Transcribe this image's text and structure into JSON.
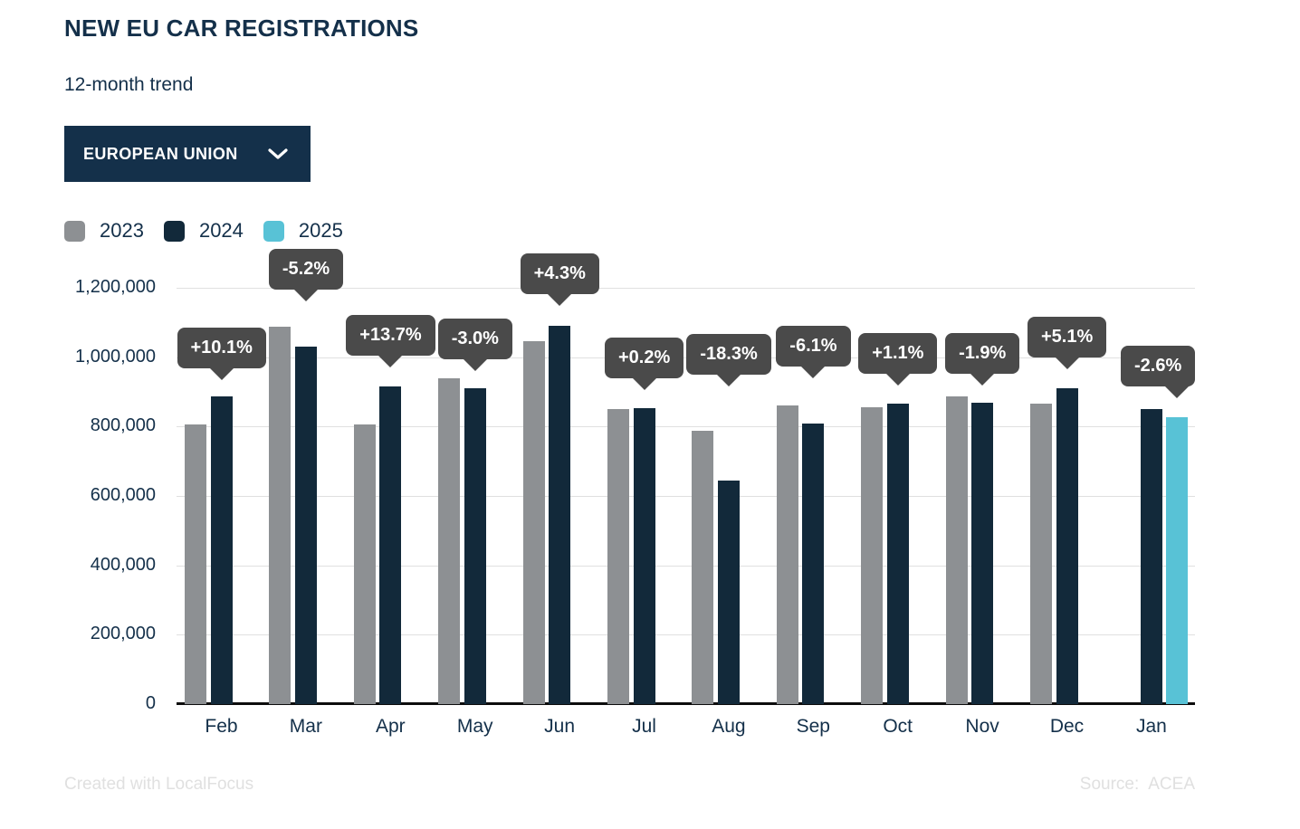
{
  "page": {
    "background": "#ffffff"
  },
  "header": {
    "title": "NEW EU CAR REGISTRATIONS",
    "subtitle": "12-month trend",
    "region_selector": {
      "label": "EUROPEAN UNION",
      "icon": "chevron-down-icon"
    }
  },
  "legend": {
    "items": [
      {
        "label": "2023",
        "color": "#8d9093"
      },
      {
        "label": "2024",
        "color": "#12293a"
      },
      {
        "label": "2025",
        "color": "#58c2d6"
      }
    ]
  },
  "chart_data": {
    "type": "bar",
    "title": "NEW EU CAR REGISTRATIONS",
    "subtitle": "12-month trend",
    "categories": [
      "Feb",
      "Mar",
      "Apr",
      "May",
      "Jun",
      "Jul",
      "Aug",
      "Sep",
      "Oct",
      "Nov",
      "Dec",
      "Jan"
    ],
    "series": [
      {
        "name": "2023",
        "color": "#8d9093",
        "values": [
          805000,
          1088000,
          805000,
          939000,
          1045000,
          851000,
          788000,
          861000,
          856000,
          887000,
          867000,
          null
        ]
      },
      {
        "name": "2024",
        "color": "#12293a",
        "values": [
          886000,
          1031000,
          915000,
          911000,
          1090000,
          852000,
          644000,
          808000,
          866000,
          870000,
          911000,
          850000
        ]
      },
      {
        "name": "2025",
        "color": "#58c2d6",
        "values": [
          null,
          null,
          null,
          null,
          null,
          null,
          null,
          null,
          null,
          null,
          null,
          828000
        ]
      }
    ],
    "change_labels": [
      "+10.1%",
      "-5.2%",
      "+13.7%",
      "-3.0%",
      "+4.3%",
      "+0.2%",
      "-18.3%",
      "-6.1%",
      "+1.1%",
      "-1.9%",
      "+5.1%",
      "-2.6%"
    ],
    "y_ticks": [
      "0",
      "200,000",
      "400,000",
      "600,000",
      "800,000",
      "1,000,000",
      "1,200,000"
    ],
    "ylim": [
      0,
      1200000
    ],
    "grid": true,
    "legend_position": "top-left",
    "tooltip_bg": "#4a4a4a",
    "gridline_color": "#e0e0e0",
    "axis_text_color": "#14304a"
  },
  "footer": {
    "credit": "Created with LocalFocus",
    "source_label": "Source:",
    "source_value": "ACEA"
  }
}
